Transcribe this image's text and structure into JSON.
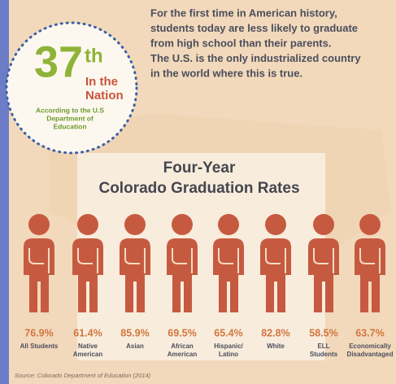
{
  "badge": {
    "rank": "37",
    "suffix": "th",
    "line1": "In the",
    "line2": "Nation",
    "source": [
      "According to the U.S",
      "Department of",
      "Education"
    ]
  },
  "intro": [
    "For the first time in American history,",
    "students today are less likely to graduate",
    "from high school than their parents.",
    "The U.S. is the only industrialized country",
    "in the world where this is true."
  ],
  "title": [
    "Four-Year",
    "Colorado Graduation Rates"
  ],
  "stats": [
    {
      "value": "76.9%",
      "label": [
        "All Students"
      ]
    },
    {
      "value": "61.4%",
      "label": [
        "Native",
        "American"
      ]
    },
    {
      "value": "85.9%",
      "label": [
        "Asian"
      ]
    },
    {
      "value": "69.5%",
      "label": [
        "African",
        "American"
      ]
    },
    {
      "value": "65.4%",
      "label": [
        "Hispanic/",
        "Latino"
      ]
    },
    {
      "value": "82.8%",
      "label": [
        "White"
      ]
    },
    {
      "value": "58.5%",
      "label": [
        "ELL",
        "Students"
      ]
    },
    {
      "value": "63.7%",
      "label": [
        "Economically",
        "Disadvantaged"
      ]
    }
  ],
  "source": "Source: Colorado Department of Education (2014)"
}
